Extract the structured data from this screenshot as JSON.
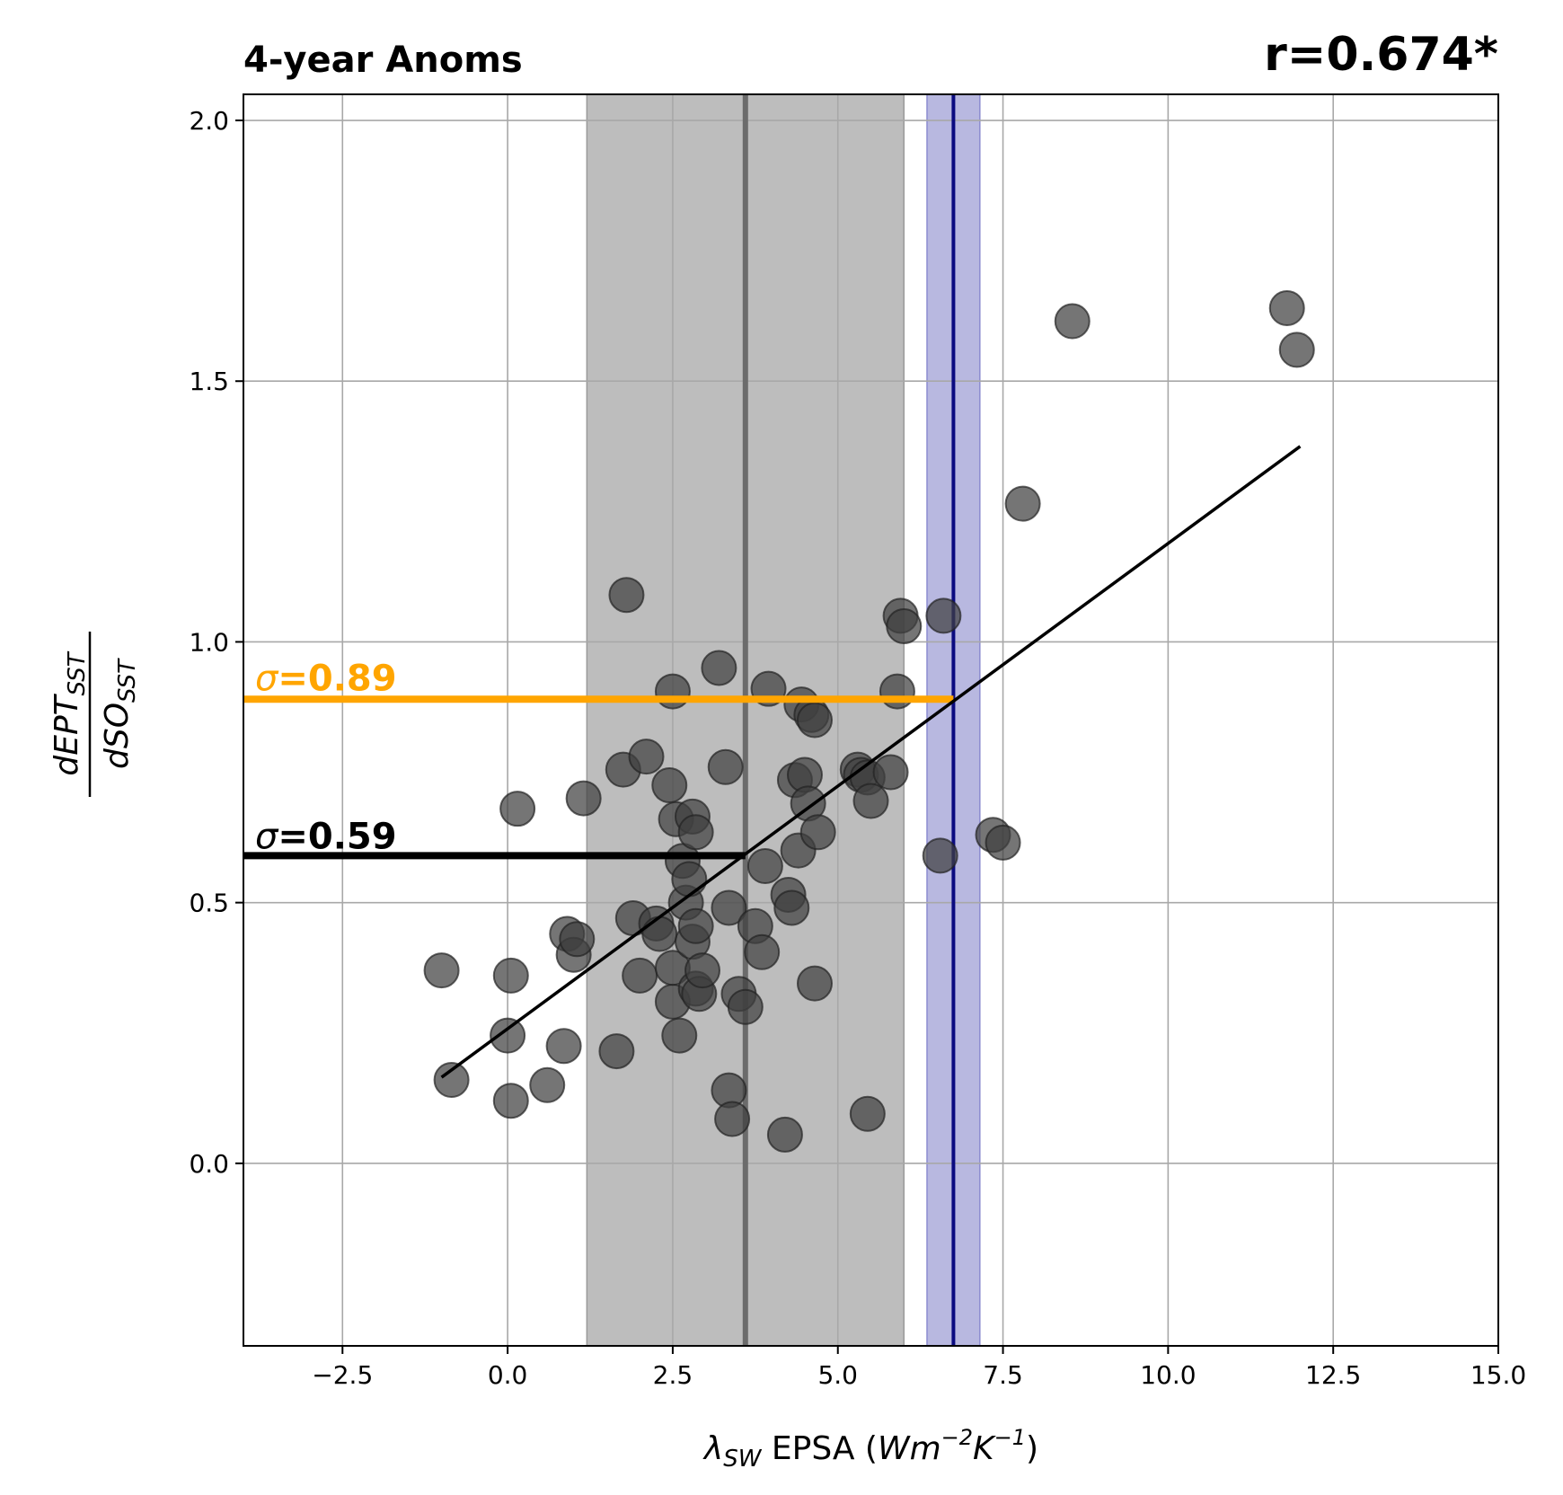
{
  "chart_data": {
    "type": "scatter",
    "title": "4-year Anoms",
    "correlation_label": "r=0.674*",
    "xlabel": {
      "symbol": "λ",
      "symbol_sub": "SW",
      "text": " EPSA (",
      "unit_base1": "Wm",
      "unit_sup1": "−2",
      "unit_base2": "K",
      "unit_sup2": "−1",
      "close": ")"
    },
    "ylabel": {
      "numerator": "dEPT",
      "numerator_sub": "SST",
      "denominator": "dSO",
      "denominator_sub": "SST"
    },
    "xlim": [
      -4.0,
      15.0
    ],
    "ylim": [
      -0.35,
      2.05
    ],
    "xticks": [
      -2.5,
      0.0,
      2.5,
      5.0,
      7.5,
      10.0,
      12.5,
      15.0
    ],
    "xtick_labels": [
      "−2.5",
      "0.0",
      "2.5",
      "5.0",
      "7.5",
      "10.0",
      "12.5",
      "15.0"
    ],
    "yticks": [
      0.0,
      0.5,
      1.0,
      1.5,
      2.0
    ],
    "ytick_labels": [
      "0.0",
      "0.5",
      "1.0",
      "1.5",
      "2.0"
    ],
    "grid": true,
    "gray_band": {
      "x0": 1.2,
      "x1": 6.0,
      "center": 3.6,
      "color": "#bdbdbd",
      "line_color": "#6b6b6b"
    },
    "blue_band": {
      "x0": 6.35,
      "x1": 7.15,
      "center": 6.75,
      "color": "#b8b8e0",
      "line_color": "#0b0b80"
    },
    "orange_line": {
      "y": 0.89,
      "x_end": 6.75,
      "label": "=0.89",
      "symbol": "σ",
      "color": "#ffa500"
    },
    "black_line": {
      "y": 0.59,
      "x_end": 3.6,
      "label": "=0.59",
      "symbol": "σ",
      "color": "#000000"
    },
    "fit_line": {
      "x": [
        -1.0,
        12.0
      ],
      "y": [
        0.165,
        1.375
      ],
      "color": "#000000"
    },
    "point_color": "#404040",
    "points": [
      [
        -1.0,
        0.37
      ],
      [
        -0.85,
        0.16
      ],
      [
        0.05,
        0.36
      ],
      [
        0.0,
        0.245
      ],
      [
        0.05,
        0.12
      ],
      [
        0.15,
        0.68
      ],
      [
        0.6,
        0.15
      ],
      [
        0.85,
        0.225
      ],
      [
        0.9,
        0.44
      ],
      [
        1.0,
        0.4
      ],
      [
        1.05,
        0.43
      ],
      [
        1.15,
        0.7
      ],
      [
        1.65,
        0.215
      ],
      [
        1.75,
        0.755
      ],
      [
        1.8,
        1.09
      ],
      [
        1.9,
        0.47
      ],
      [
        2.0,
        0.36
      ],
      [
        2.1,
        0.78
      ],
      [
        2.25,
        0.46
      ],
      [
        2.3,
        0.44
      ],
      [
        2.45,
        0.725
      ],
      [
        2.5,
        0.31
      ],
      [
        2.5,
        0.375
      ],
      [
        2.5,
        0.905
      ],
      [
        2.55,
        0.66
      ],
      [
        2.6,
        0.245
      ],
      [
        2.65,
        0.58
      ],
      [
        2.7,
        0.5
      ],
      [
        2.75,
        0.545
      ],
      [
        2.8,
        0.665
      ],
      [
        2.8,
        0.425
      ],
      [
        2.85,
        0.455
      ],
      [
        2.85,
        0.635
      ],
      [
        2.85,
        0.335
      ],
      [
        2.9,
        0.325
      ],
      [
        2.95,
        0.37
      ],
      [
        3.2,
        0.95
      ],
      [
        3.3,
        0.76
      ],
      [
        3.35,
        0.49
      ],
      [
        3.35,
        0.14
      ],
      [
        3.4,
        0.085
      ],
      [
        3.5,
        0.325
      ],
      [
        3.6,
        0.3
      ],
      [
        3.75,
        0.455
      ],
      [
        3.85,
        0.405
      ],
      [
        3.9,
        0.57
      ],
      [
        3.95,
        0.91
      ],
      [
        4.2,
        0.055
      ],
      [
        4.25,
        0.515
      ],
      [
        4.3,
        0.49
      ],
      [
        4.35,
        0.735
      ],
      [
        4.4,
        0.6
      ],
      [
        4.45,
        0.88
      ],
      [
        4.5,
        0.745
      ],
      [
        4.55,
        0.69
      ],
      [
        4.6,
        0.86
      ],
      [
        4.65,
        0.85
      ],
      [
        4.65,
        0.345
      ],
      [
        4.7,
        0.635
      ],
      [
        5.3,
        0.755
      ],
      [
        5.35,
        0.745
      ],
      [
        5.45,
        0.74
      ],
      [
        5.45,
        0.095
      ],
      [
        5.5,
        0.695
      ],
      [
        5.8,
        0.75
      ],
      [
        5.9,
        0.905
      ],
      [
        5.95,
        1.05
      ],
      [
        6.0,
        1.03
      ],
      [
        6.55,
        0.59
      ],
      [
        6.6,
        1.05
      ],
      [
        7.35,
        0.63
      ],
      [
        7.5,
        0.615
      ],
      [
        7.8,
        1.265
      ],
      [
        8.55,
        1.615
      ],
      [
        11.8,
        1.64
      ],
      [
        11.95,
        1.56
      ]
    ]
  }
}
